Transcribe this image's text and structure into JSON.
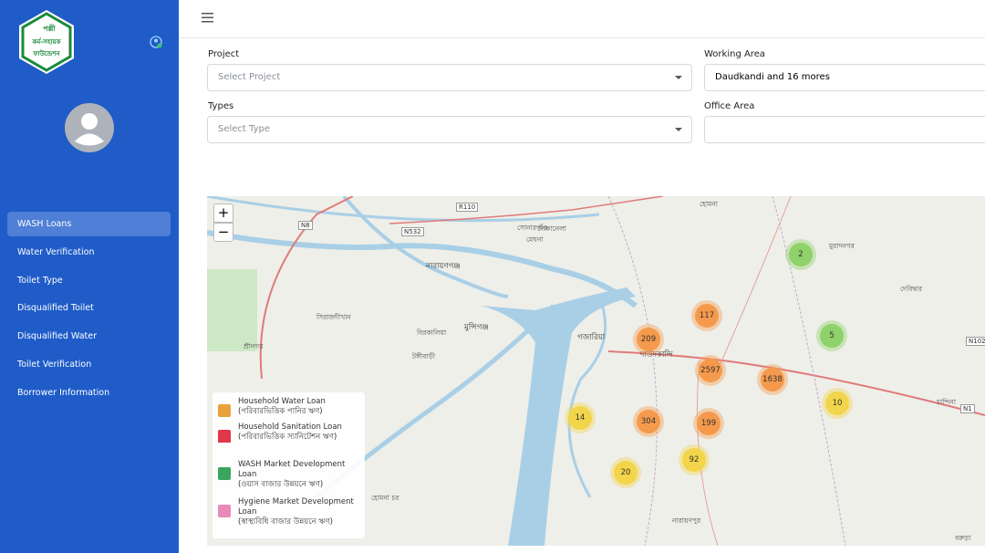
{
  "sidebar": {
    "logo": [
      "পল্লী",
      "কর্ম-সহায়ক",
      "ফাউন্ডেশন"
    ],
    "menu": [
      "WASH Loans",
      "Water Verification",
      "Toilet Type",
      "Disqualified Toilet",
      "Disqualified Water",
      "Toilet Verification",
      "Borrower Information"
    ]
  },
  "filters": [
    {
      "label": "Project",
      "placeholder": "Select Project"
    },
    {
      "label": "Working Area",
      "value": "Daudkandi and 16 mores"
    },
    {
      "label": "Types",
      "placeholder": "Select Type"
    },
    {
      "label": "Office Area"
    }
  ],
  "map": {
    "zoom_in": "+",
    "zoom_out": "−",
    "clusters": [
      {
        "count": 2,
        "color": "#8fd16a"
      },
      {
        "count": 117,
        "color": "#f59a4c"
      },
      {
        "count": 5,
        "color": "#8fd16a"
      },
      {
        "count": 209,
        "color": "#f59a4c"
      },
      {
        "count": 2597,
        "color": "#f59a4c"
      },
      {
        "count": 1638,
        "color": "#f59a4c"
      },
      {
        "count": 10,
        "color": "#f2d54a"
      },
      {
        "count": 14,
        "color": "#f2d54a"
      },
      {
        "count": 304,
        "color": "#f59a4c"
      },
      {
        "count": 199,
        "color": "#f59a4c"
      },
      {
        "count": 92,
        "color": "#f2d54a"
      },
      {
        "count": 20,
        "color": "#f2d54a"
      }
    ],
    "roads": [
      "N8",
      "N532",
      "R110",
      "N102",
      "N1"
    ],
    "places": [
      "নারায়ণগঞ্জ",
      "মুন্সিগঞ্জ",
      "গজারিয়া",
      "দাউদকান্দি",
      "সিরাজদীখান",
      "শ্রীনগর",
      "টঙ্গীবাড়ী",
      "মুরাদনগর",
      "দেবিদ্বার",
      "চান্দিনা",
      "বরুড়া",
      "নারায়ণপুর",
      "হোমনা",
      "মেঘনা",
      "হোমনা চর",
      "দোকানেলা",
      "সোনারগাঁও",
      "বিরকালিয়া"
    ],
    "legend": [
      {
        "title": "Household Water Loan",
        "subtitle": "(পরিবারভিত্তিক পানির ঋণ)"
      },
      {
        "title": "Household Sanitation Loan",
        "subtitle": "(পরিবারভিত্তিক স্যানিটেশন ঋণ)"
      },
      {
        "title": "WASH Market Development Loan",
        "subtitle": "(ওয়াস বাজার উন্নয়নে ঋণ)"
      },
      {
        "title": "Hygiene Market Development Loan",
        "subtitle": "(স্বাস্থ্যবিধি বাজার উন্নয়নে ঋণ)"
      }
    ]
  }
}
